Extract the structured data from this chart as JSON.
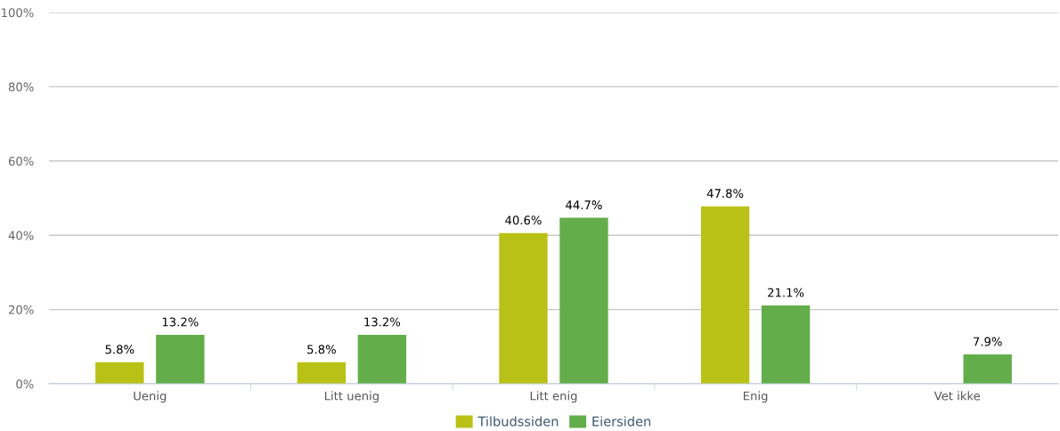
{
  "chart_data": {
    "type": "bar",
    "categories": [
      "Uenig",
      "Litt uenig",
      "Litt enig",
      "Enig",
      "Vet ikke"
    ],
    "series": [
      {
        "name": "Tilbudssiden",
        "color": "#bac116",
        "values": [
          5.8,
          5.8,
          40.6,
          47.8,
          null
        ],
        "value_labels": [
          "5.8%",
          "5.8%",
          "40.6%",
          "47.8%",
          null
        ]
      },
      {
        "name": "Eiersiden",
        "color": "#63ae4a",
        "values": [
          13.2,
          13.2,
          44.7,
          21.1,
          7.9
        ],
        "value_labels": [
          "13.2%",
          "13.2%",
          "44.7%",
          "21.1%",
          "7.9%"
        ]
      }
    ],
    "ylim": [
      0,
      100
    ],
    "yticks": [
      {
        "value": 0,
        "label": "0%"
      },
      {
        "value": 20,
        "label": "20%"
      },
      {
        "value": 40,
        "label": "40%"
      },
      {
        "value": 60,
        "label": "60%"
      },
      {
        "value": 80,
        "label": "80%"
      },
      {
        "value": 100,
        "label": "100%"
      }
    ],
    "grid": "y",
    "legend": "bottom"
  }
}
